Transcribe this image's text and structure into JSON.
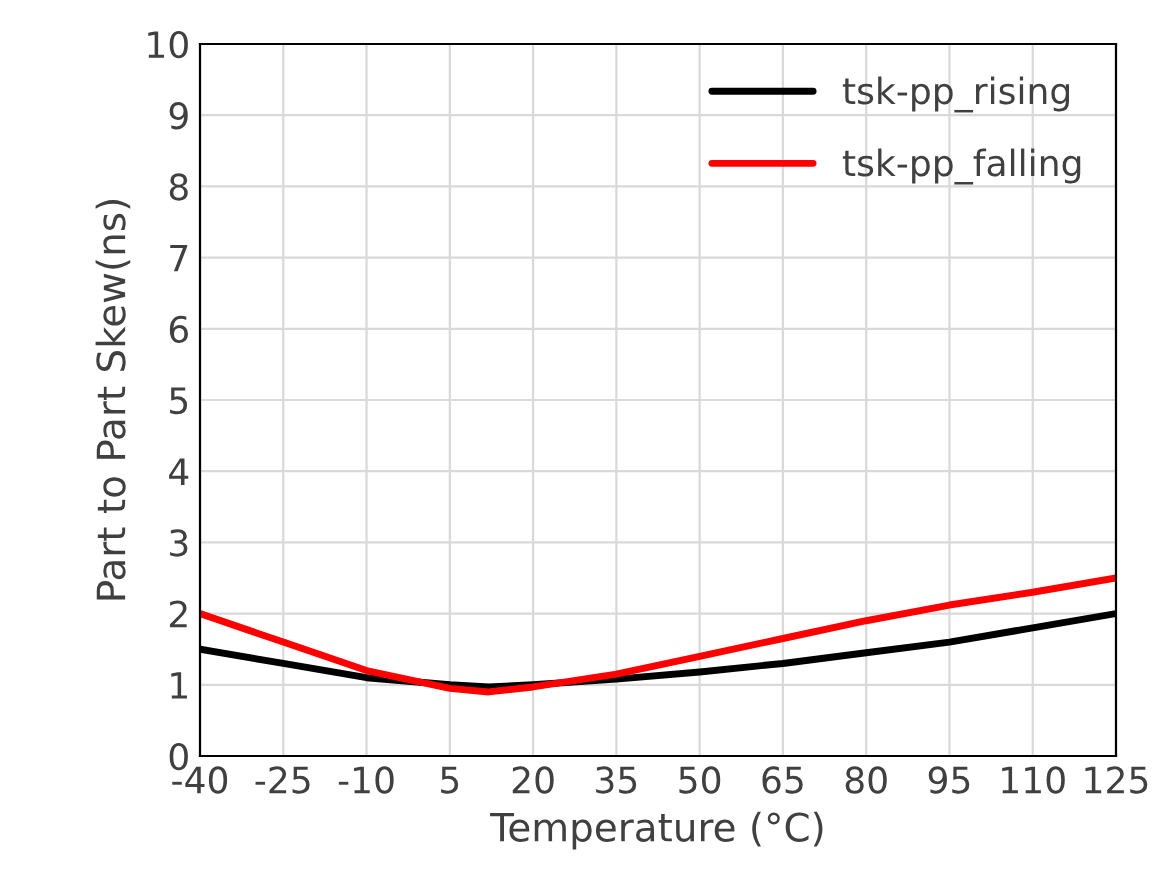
{
  "chart_data": {
    "type": "line",
    "xlabel": "Temperature (°C)",
    "ylabel": "Part to Part Skew(ns)",
    "x": [
      -40,
      -25,
      -10,
      5,
      12,
      20,
      35,
      50,
      65,
      80,
      95,
      110,
      125
    ],
    "series": [
      {
        "name": "tsk-pp_rising",
        "color": "#000000",
        "values": [
          1.5,
          1.3,
          1.1,
          1.0,
          0.97,
          1.0,
          1.08,
          1.18,
          1.3,
          1.45,
          1.6,
          1.8,
          2.0
        ]
      },
      {
        "name": "tsk-pp_falling",
        "color": "#ff0000",
        "values": [
          2.0,
          1.6,
          1.2,
          0.95,
          0.9,
          0.97,
          1.15,
          1.4,
          1.65,
          1.9,
          2.12,
          2.3,
          2.5
        ]
      }
    ],
    "xlim": [
      -40,
      125
    ],
    "xticks": [
      -40,
      -25,
      -10,
      5,
      20,
      35,
      50,
      65,
      80,
      95,
      110,
      125
    ],
    "ylim": [
      0,
      10
    ],
    "yticks": [
      0,
      1,
      2,
      3,
      4,
      5,
      6,
      7,
      8,
      9,
      10
    ],
    "grid": true,
    "legend": "top right",
    "marker": "none",
    "line_style": "solid"
  }
}
